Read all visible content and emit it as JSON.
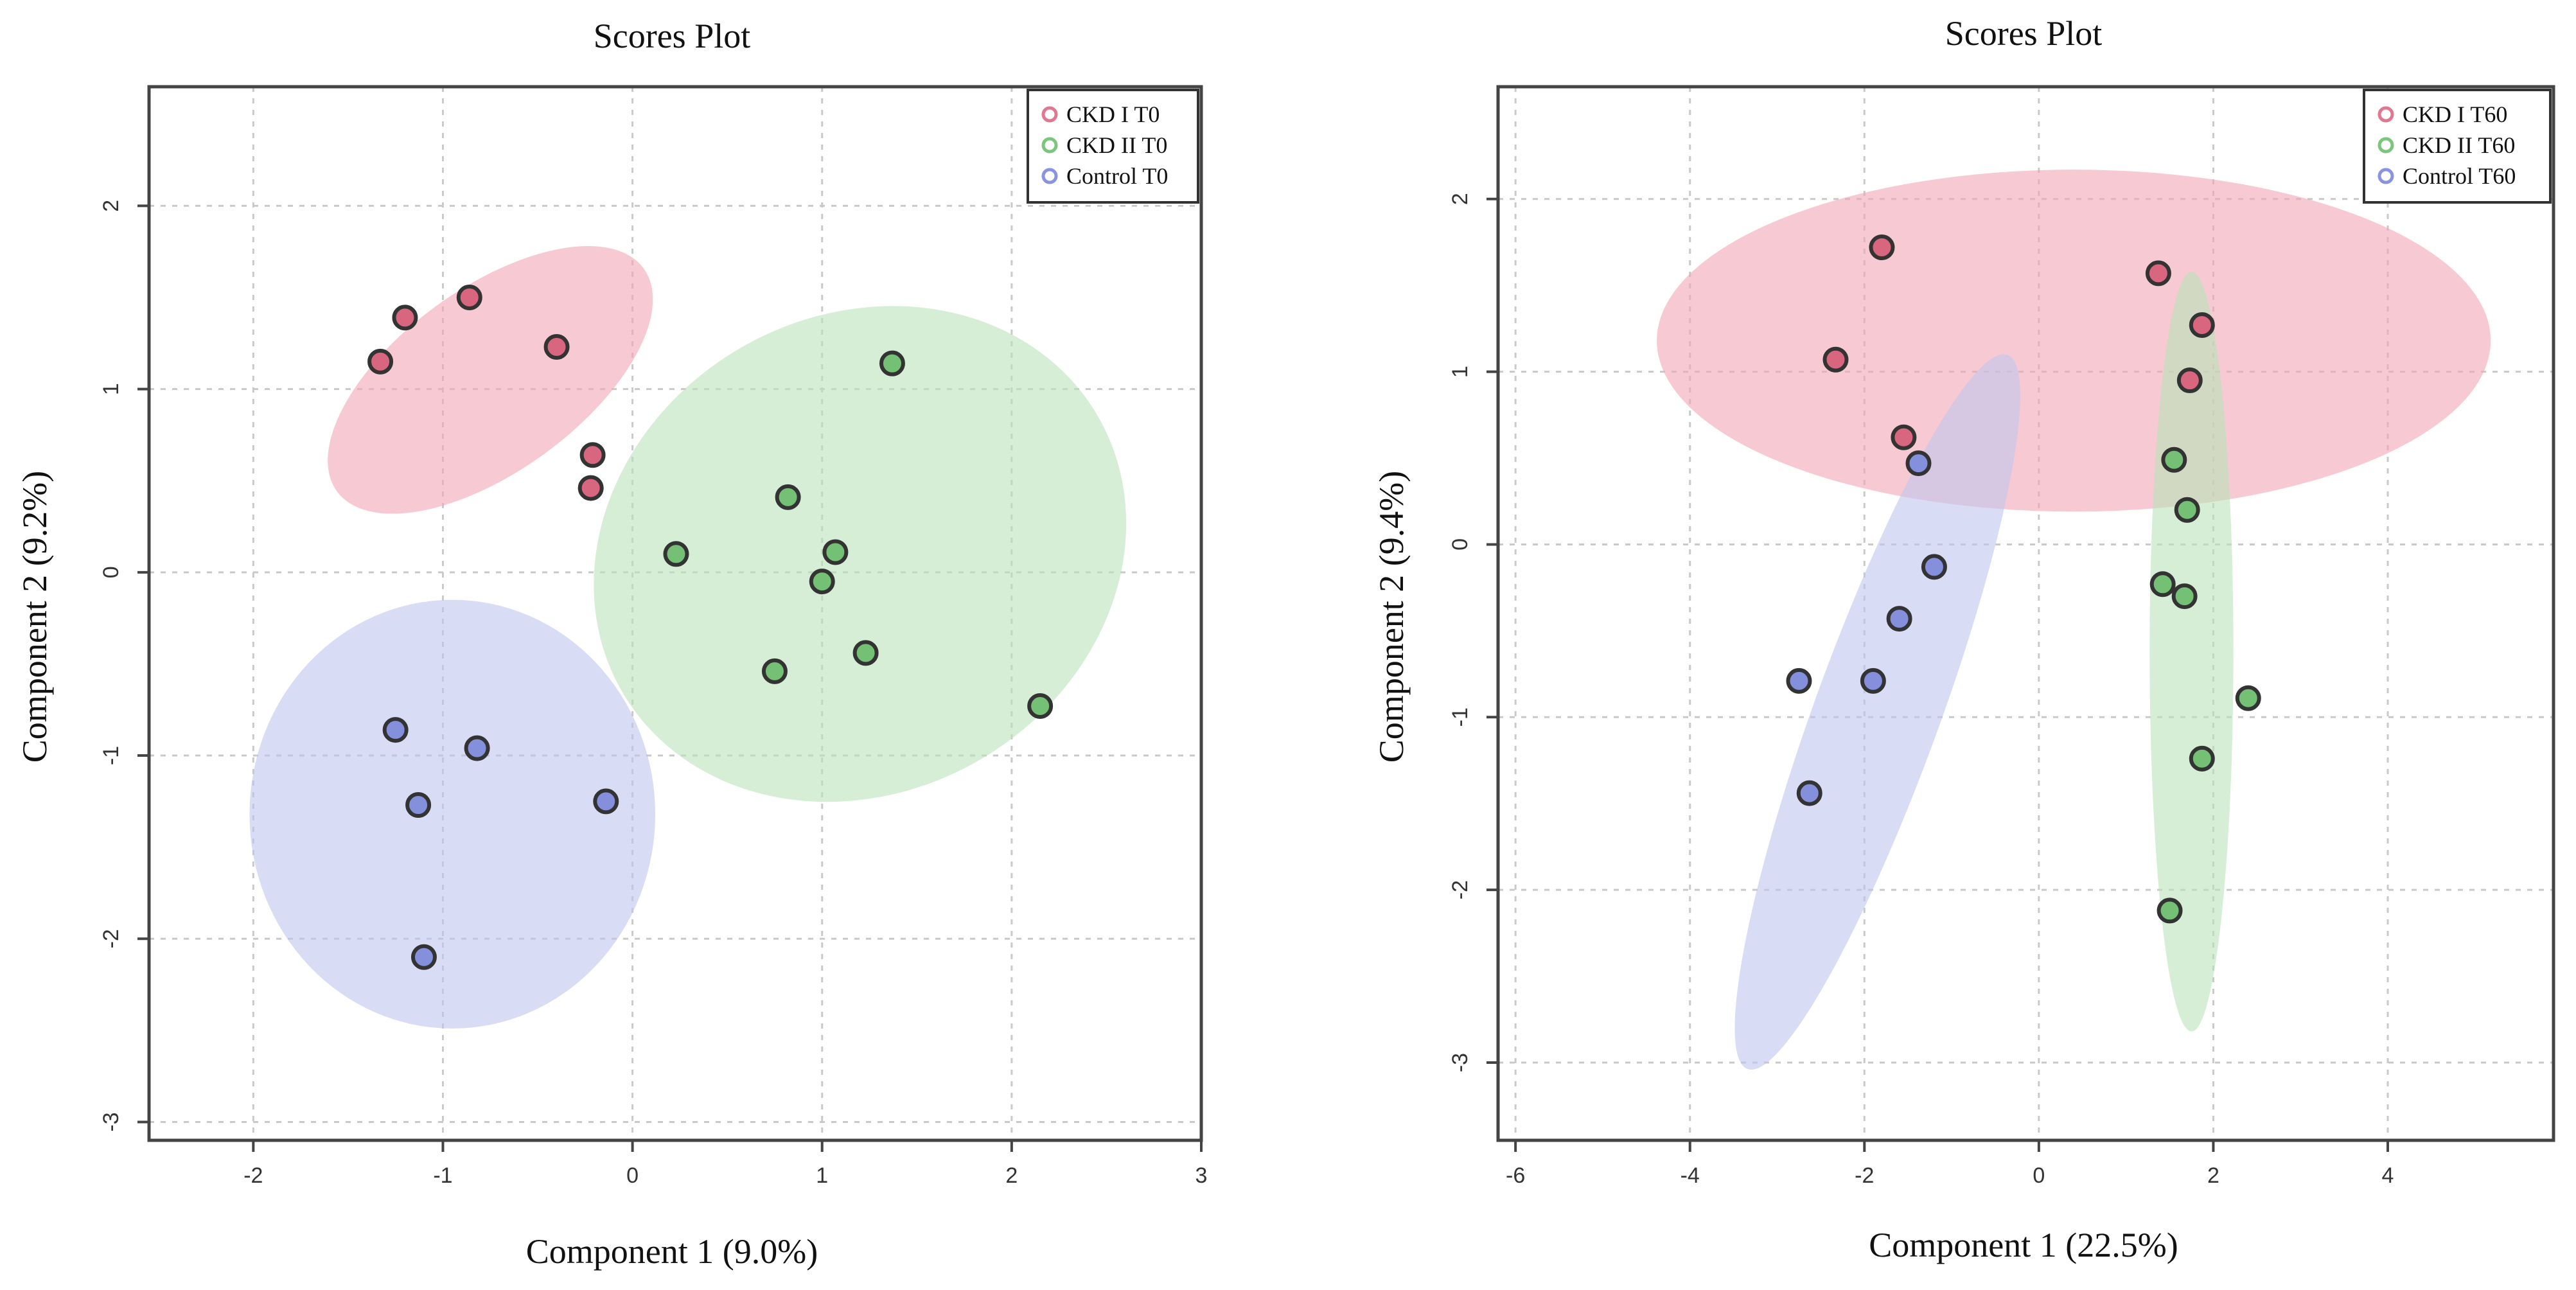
{
  "figure": {
    "panel_count": 2
  },
  "chart_data": [
    {
      "type": "scatter",
      "title": "Scores Plot",
      "xlabel": "Component 1 (9.0%)",
      "ylabel": "Component 2 (9.2%)",
      "xlim": [
        -2.55,
        3.0
      ],
      "ylim": [
        -3.1,
        2.65
      ],
      "xticks": [
        "-2",
        "-1",
        "0",
        "1",
        "2",
        "3"
      ],
      "yticks": [
        "-3",
        "-2",
        "-1",
        "0",
        "1",
        "2"
      ],
      "xtick_values": [
        -2,
        -1,
        0,
        1,
        2,
        3
      ],
      "ytick_values": [
        -3,
        -2,
        -1,
        0,
        1,
        2
      ],
      "grid": true,
      "legend_position": "top-right",
      "series": [
        {
          "name": "CKD I T0",
          "color": "#e07890",
          "marker_color": "#d9667f",
          "ellipse_color": "#f2a6b6",
          "ellipse": {
            "cx": -0.75,
            "cy": 1.05,
            "rx": 1.0,
            "ry": 0.5,
            "angle_deg": -36
          },
          "points": [
            [
              -1.33,
              1.15
            ],
            [
              -1.2,
              1.39
            ],
            [
              -0.86,
              1.5
            ],
            [
              -0.4,
              1.23
            ],
            [
              -0.21,
              0.64
            ],
            [
              -0.22,
              0.46
            ]
          ]
        },
        {
          "name": "CKD II T0",
          "color": "#7cc57c",
          "marker_color": "#74c074",
          "ellipse_color": "#b9e3b9",
          "ellipse": {
            "cx": 1.2,
            "cy": 0.1,
            "rx": 1.45,
            "ry": 1.3,
            "angle_deg": -30
          },
          "points": [
            [
              1.37,
              1.14
            ],
            [
              0.82,
              0.41
            ],
            [
              0.23,
              0.1
            ],
            [
              1.07,
              0.11
            ],
            [
              1.0,
              -0.05
            ],
            [
              0.75,
              -0.54
            ],
            [
              1.23,
              -0.44
            ],
            [
              2.15,
              -0.73
            ]
          ]
        },
        {
          "name": "Control T0",
          "color": "#8a94de",
          "marker_color": "#8490db",
          "ellipse_color": "#c0c5ef",
          "ellipse": {
            "cx": -0.95,
            "cy": -1.32,
            "rx": 1.07,
            "ry": 1.17,
            "angle_deg": 0
          },
          "points": [
            [
              -1.25,
              -0.86
            ],
            [
              -0.82,
              -0.96
            ],
            [
              -1.13,
              -1.27
            ],
            [
              -0.14,
              -1.25
            ],
            [
              -1.1,
              -2.1
            ]
          ]
        }
      ]
    },
    {
      "type": "scatter",
      "title": "Scores Plot",
      "xlabel": "Component 1 (22.5%)",
      "ylabel": "Component 2 (9.4%)",
      "xlim": [
        -6.2,
        5.9
      ],
      "ylim": [
        -3.45,
        2.65
      ],
      "xticks": [
        "-6",
        "-4",
        "-2",
        "0",
        "2",
        "4"
      ],
      "yticks": [
        "-3",
        "-2",
        "-1",
        "0",
        "1",
        "2"
      ],
      "xtick_values": [
        -6,
        -4,
        -2,
        0,
        2,
        4
      ],
      "ytick_values": [
        -3,
        -2,
        -1,
        0,
        1,
        2
      ],
      "grid": true,
      "legend_position": "top-right",
      "series": [
        {
          "name": "CKD I T60",
          "color": "#e07890",
          "marker_color": "#d9667f",
          "ellipse_color": "#f2a6b6",
          "ellipse": {
            "cx": 0.4,
            "cy": 1.18,
            "rx": 4.78,
            "ry": 0.99,
            "angle_deg": 0
          },
          "points": [
            [
              -1.8,
              1.72
            ],
            [
              -2.33,
              1.07
            ],
            [
              1.37,
              1.57
            ],
            [
              1.87,
              1.27
            ],
            [
              1.73,
              0.95
            ],
            [
              -1.55,
              0.62
            ]
          ]
        },
        {
          "name": "CKD II T60",
          "color": "#7cc57c",
          "marker_color": "#74c074",
          "ellipse_color": "#b9e3b9",
          "ellipse": {
            "cx": 1.75,
            "cy": -0.62,
            "rx": 0.48,
            "ry": 2.2,
            "angle_deg": 0
          },
          "points": [
            [
              1.55,
              0.49
            ],
            [
              1.7,
              0.2
            ],
            [
              1.42,
              -0.23
            ],
            [
              1.67,
              -0.3
            ],
            [
              2.4,
              -0.89
            ],
            [
              1.87,
              -1.24
            ],
            [
              1.5,
              -2.12
            ]
          ]
        },
        {
          "name": "Control T60",
          "color": "#8a94de",
          "marker_color": "#8490db",
          "ellipse_color": "#c0c5ef",
          "ellipse": {
            "cx": -1.85,
            "cy": -0.97,
            "rx": 0.72,
            "ry": 2.2,
            "angle_deg": 20
          },
          "points": [
            [
              -1.38,
              0.47
            ],
            [
              -1.2,
              -0.13
            ],
            [
              -1.6,
              -0.43
            ],
            [
              -2.75,
              -0.79
            ],
            [
              -1.9,
              -0.79
            ],
            [
              -2.63,
              -1.44
            ]
          ]
        }
      ]
    }
  ]
}
